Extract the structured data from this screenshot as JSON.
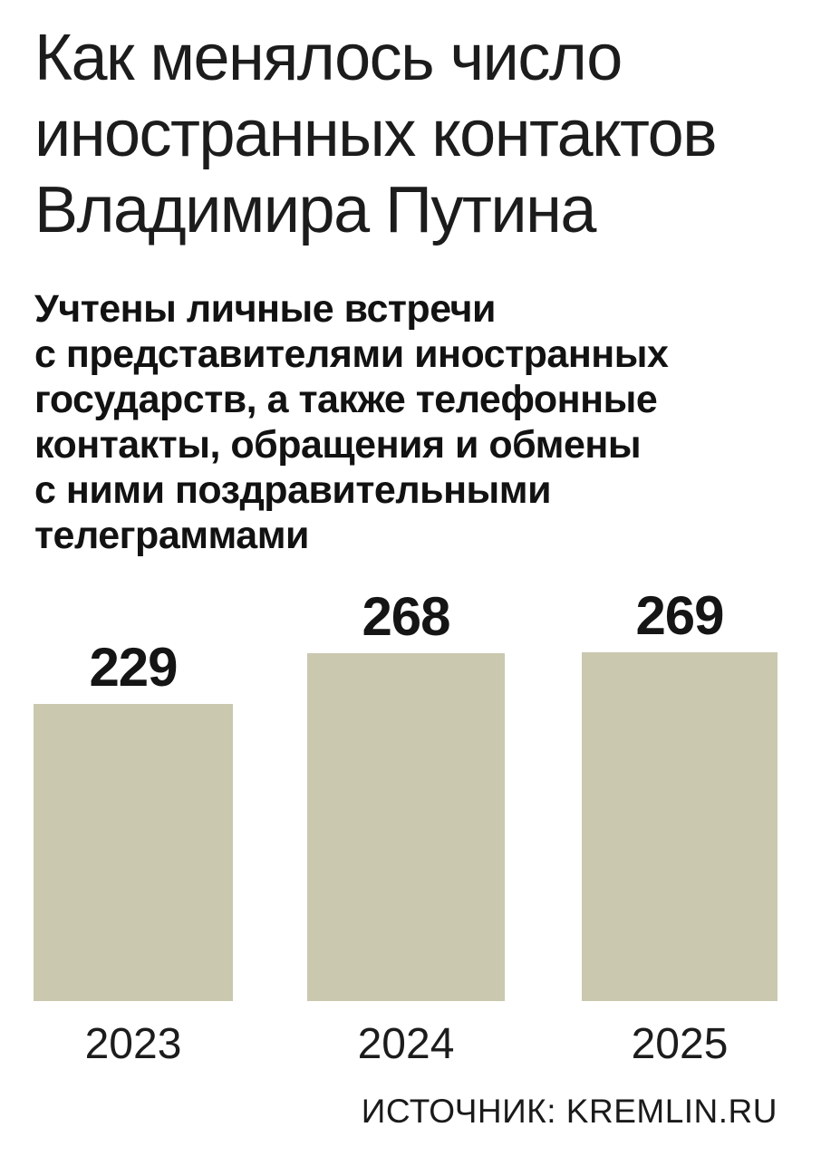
{
  "header": {
    "title": "Как менялось число\nиностранных контактов\nВладимира Путина",
    "subtitle": "Учтены личные встречи\nс представителями иностранных\nгосударств, а также телефонные\nконтакты, обращения и обмены\nс ними поздравительными\nтелеграммами"
  },
  "chart_data": {
    "type": "bar",
    "categories": [
      "2023",
      "2024",
      "2025"
    ],
    "values": [
      229,
      268,
      269
    ],
    "title": "Как менялось число иностранных контактов Владимира Путина",
    "xlabel": "",
    "ylabel": "",
    "ylim": [
      0,
      280
    ],
    "grid": false,
    "legend_position": "none",
    "value_labels_shown": true,
    "bar_color": "#cac8af"
  },
  "footer": {
    "source": "ИСТОЧНИК: KREMLIN.RU"
  },
  "colors": {
    "background": "#ffffff",
    "bar": "#cac8af",
    "text": "#1a1a1a"
  }
}
